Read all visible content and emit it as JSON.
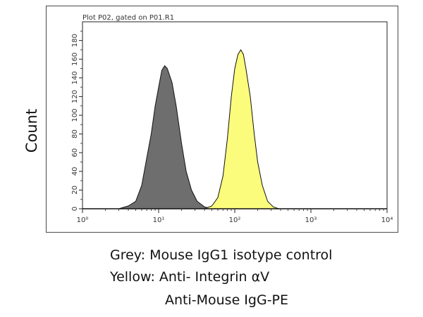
{
  "chart_data": {
    "type": "area",
    "title": "Plot P02, gated on P01.R1",
    "ylabel": "Count",
    "xlabel": "",
    "x_scale": "log",
    "xlim": [
      1,
      10000
    ],
    "ylim": [
      0,
      200
    ],
    "x_ticks": [
      "10⁰",
      "10¹",
      "10²",
      "10³",
      "10⁴"
    ],
    "y_ticks": [
      "0",
      "20",
      "40",
      "60",
      "80",
      "100",
      "120",
      "140",
      "160",
      "180"
    ],
    "y_tick_values": [
      0,
      20,
      40,
      60,
      80,
      100,
      120,
      140,
      160,
      180
    ],
    "x_tick_values": [
      1,
      10,
      100,
      1000,
      10000
    ],
    "series": [
      {
        "color": "#6e6e6e",
        "points": [
          [
            3,
            0
          ],
          [
            4,
            3
          ],
          [
            5,
            8
          ],
          [
            6,
            25
          ],
          [
            7,
            55
          ],
          [
            8,
            80
          ],
          [
            9,
            110
          ],
          [
            10,
            130
          ],
          [
            11,
            148
          ],
          [
            12,
            153
          ],
          [
            13,
            150
          ],
          [
            15,
            135
          ],
          [
            17,
            110
          ],
          [
            20,
            70
          ],
          [
            23,
            40
          ],
          [
            27,
            20
          ],
          [
            32,
            8
          ],
          [
            40,
            2
          ],
          [
            50,
            0
          ]
        ]
      },
      {
        "color": "#fcfc7c",
        "points": [
          [
            40,
            0
          ],
          [
            50,
            3
          ],
          [
            60,
            12
          ],
          [
            70,
            35
          ],
          [
            80,
            75
          ],
          [
            90,
            120
          ],
          [
            100,
            150
          ],
          [
            110,
            165
          ],
          [
            120,
            170
          ],
          [
            130,
            165
          ],
          [
            140,
            150
          ],
          [
            160,
            120
          ],
          [
            180,
            80
          ],
          [
            200,
            50
          ],
          [
            230,
            25
          ],
          [
            270,
            8
          ],
          [
            320,
            2
          ],
          [
            380,
            0
          ]
        ]
      }
    ]
  },
  "captions": {
    "line1": "Grey: Mouse IgG1 isotype control",
    "line2": "Yellow: Anti- Integrin αV",
    "line3": "Anti-Mouse IgG-PE"
  }
}
